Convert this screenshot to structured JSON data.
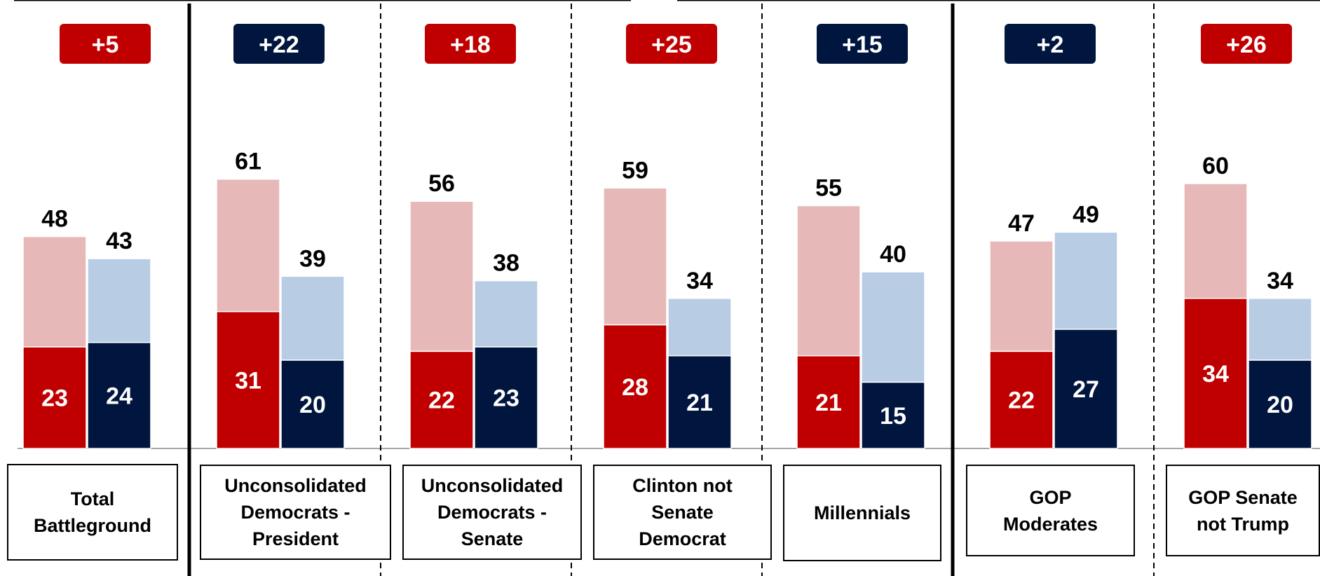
{
  "colors": {
    "gop_dark": "#c00000",
    "gop_light": "#e6b8b7",
    "dem_dark": "#00163f",
    "dem_light": "#b8cce4"
  },
  "chart_data": {
    "type": "bar",
    "categories": [
      "Total\nBattleground",
      "Unconsolidated\nDemocrats -\nPresident",
      "Unconsolidated\nDemocrats -\nSenate",
      "Clinton not\nSenate\nDemocrat",
      "Millennials",
      "GOP\nModerates",
      "GOP Senate\nnot Trump"
    ],
    "series": [
      {
        "values": [
          48,
          61,
          56,
          59,
          55,
          47,
          60
        ],
        "color": "#e6b8b7"
      },
      {
        "values": [
          23,
          31,
          22,
          28,
          21,
          22,
          34
        ],
        "color": "#c00000"
      },
      {
        "values": [
          43,
          39,
          38,
          34,
          40,
          49,
          34
        ],
        "color": "#b8cce4"
      },
      {
        "values": [
          24,
          20,
          23,
          21,
          15,
          27,
          20
        ],
        "color": "#00163f"
      }
    ],
    "margins": [
      {
        "text": "+5",
        "color": "#c00000"
      },
      {
        "text": "+22",
        "color": "#00163f"
      },
      {
        "text": "+18",
        "color": "#c00000"
      },
      {
        "text": "+25",
        "color": "#c00000"
      },
      {
        "text": "+15",
        "color": "#00163f"
      },
      {
        "text": "+2",
        "color": "#00163f"
      },
      {
        "text": "+26",
        "color": "#c00000"
      }
    ],
    "separators": [
      "solid",
      "dashed",
      "dashed",
      "dashed",
      "solid",
      "dashed"
    ],
    "ylim": [
      0,
      100
    ],
    "grid": false,
    "legend": "none"
  }
}
